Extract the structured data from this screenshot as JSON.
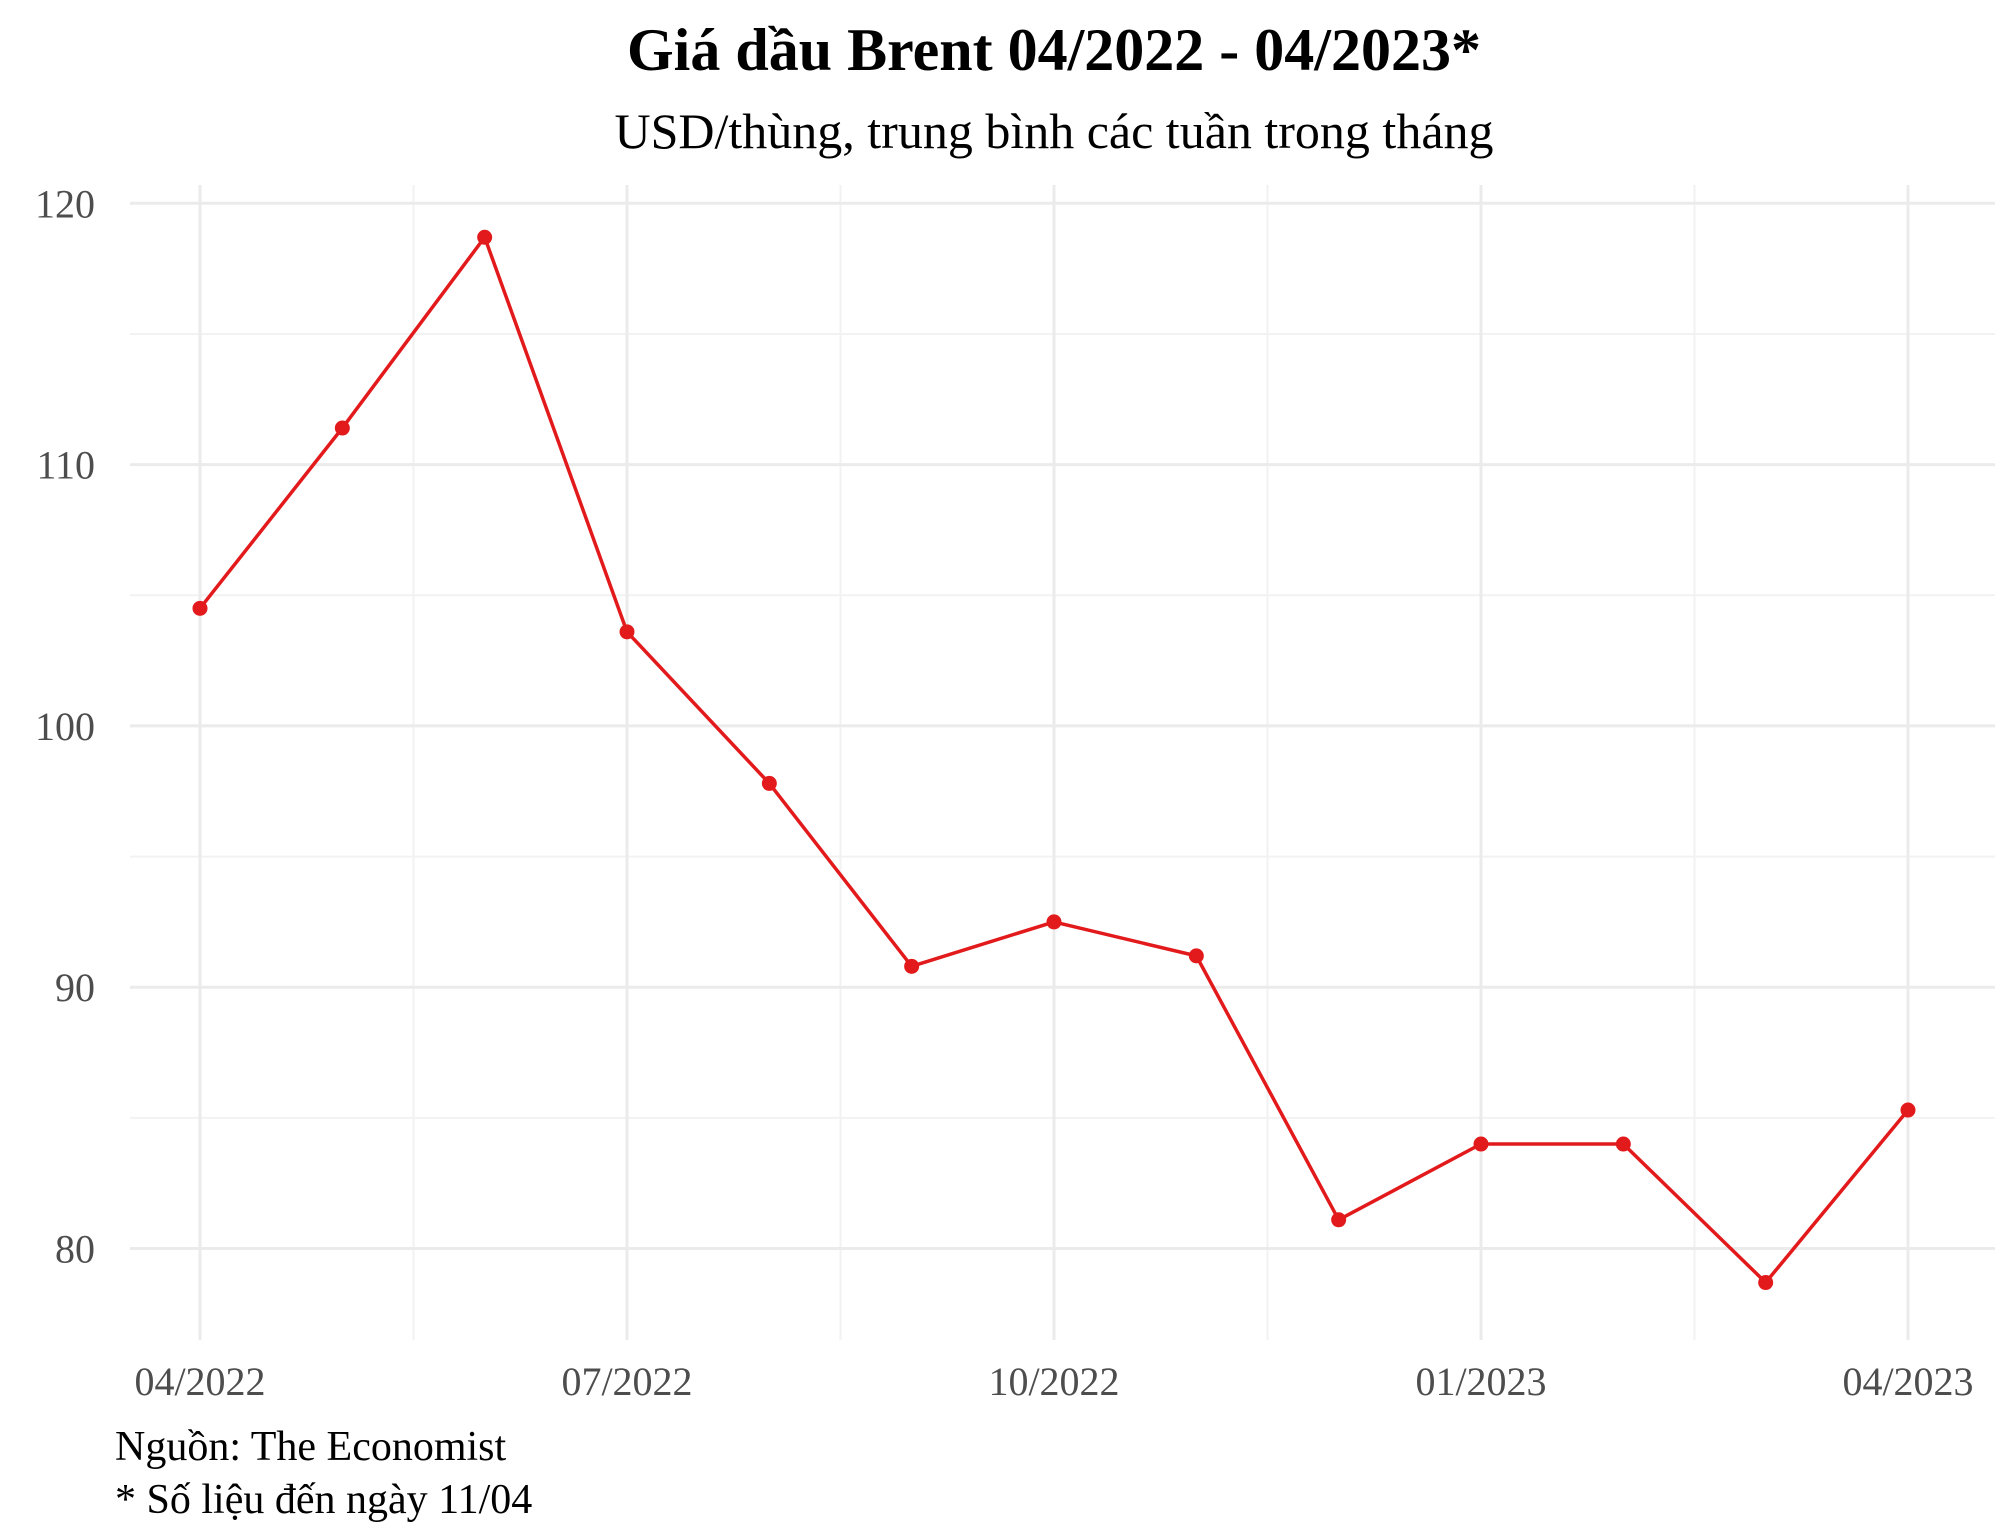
{
  "title": "Giá dầu Brent 04/2022 - 04/2023*",
  "subtitle": "USD/thùng, trung bình các tuần trong tháng",
  "caption": {
    "source": "Nguồn: The Economist",
    "note": "* Số liệu đến ngày 11/04"
  },
  "colors": {
    "line": "#e31a1c",
    "grid_major": "#ebebeb",
    "grid_minor": "#f2f2f2",
    "tick_text": "#4d4d4d"
  },
  "chart_data": {
    "type": "line",
    "title": "Giá dầu Brent 04/2022 - 04/2023*",
    "subtitle": "USD/thùng, trung bình các tuần trong tháng",
    "xlabel": "",
    "ylabel": "",
    "x": [
      "04/2022",
      "05/2022",
      "06/2022",
      "07/2022",
      "08/2022",
      "09/2022",
      "10/2022",
      "11/2022",
      "12/2022",
      "01/2023",
      "02/2023",
      "03/2023",
      "04/2023"
    ],
    "x_date_offsets_note_free": [
      0,
      1,
      2,
      3,
      4,
      5,
      6,
      7,
      8,
      9,
      10,
      11,
      12
    ],
    "series": [
      {
        "values": [
          104.5,
          111.4,
          118.7,
          103.6,
          97.8,
          90.8,
          92.5,
          91.2,
          81.1,
          84.0,
          84.0,
          78.7,
          85.3
        ]
      }
    ],
    "x_ticks": [
      "04/2022",
      "07/2022",
      "10/2022",
      "01/2023",
      "04/2023"
    ],
    "y_ticks": [
      80,
      90,
      100,
      110,
      120
    ],
    "ylim": [
      76.5,
      120.7
    ],
    "grid": true,
    "legend": "none"
  }
}
